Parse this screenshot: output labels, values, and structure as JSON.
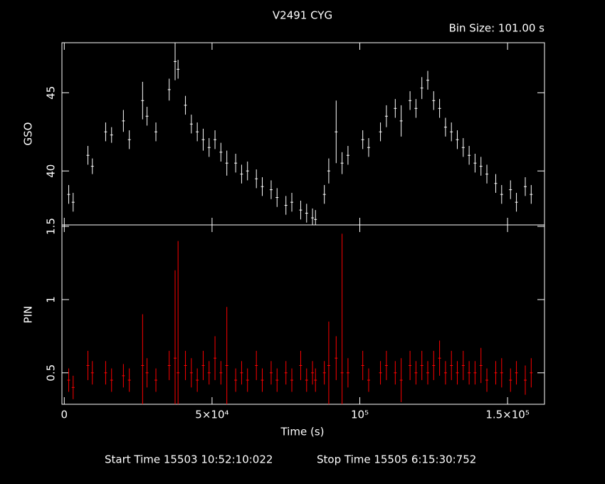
{
  "chart_data": [
    {
      "type": "errorbar",
      "title": "V2491 CYG",
      "subtitle": "Bin Size: 101.00 s",
      "ylabel": "GSO",
      "color": "#ffffff",
      "x": [
        1500,
        3000,
        8000,
        9500,
        14000,
        16000,
        20000,
        22000,
        26500,
        28000,
        31000,
        35500,
        37500,
        38500,
        41000,
        43000,
        45000,
        47000,
        49000,
        51000,
        53000,
        55000,
        58000,
        60000,
        62000,
        65000,
        67000,
        70000,
        72000,
        75000,
        77000,
        80000,
        82000,
        84000,
        85000,
        88000,
        89500,
        92000,
        94000,
        96000,
        101000,
        103000,
        107000,
        109000,
        112000,
        114000,
        117000,
        119000,
        121000,
        123000,
        125000,
        127000,
        129000,
        131000,
        133000,
        135000,
        137000,
        139000,
        141000,
        143000,
        146000,
        148000,
        151000,
        153000,
        156000,
        158000
      ],
      "values": [
        38.5,
        38.0,
        41.0,
        40.3,
        42.5,
        42.3,
        43.2,
        42.0,
        44.5,
        43.5,
        42.5,
        45.2,
        47.0,
        46.5,
        44.2,
        43.0,
        42.5,
        42.0,
        41.5,
        42.0,
        41.2,
        40.5,
        40.5,
        39.8,
        40.0,
        39.5,
        39.0,
        38.8,
        38.3,
        37.8,
        38.0,
        37.5,
        37.3,
        37.0,
        36.9,
        38.5,
        40.0,
        42.5,
        40.5,
        41.0,
        42.0,
        41.5,
        42.5,
        43.5,
        44.0,
        43.2,
        44.5,
        44.0,
        45.3,
        45.8,
        44.5,
        44.0,
        42.8,
        42.5,
        42.0,
        41.5,
        41.0,
        40.5,
        40.3,
        39.8,
        39.2,
        38.5,
        38.8,
        38.0,
        39.0,
        38.5
      ],
      "errors": [
        0.6,
        0.6,
        0.6,
        0.5,
        0.6,
        0.5,
        0.7,
        0.6,
        1.2,
        0.6,
        0.6,
        0.7,
        1.2,
        0.6,
        0.6,
        0.6,
        0.6,
        0.7,
        0.6,
        0.6,
        0.6,
        0.8,
        0.6,
        0.6,
        0.6,
        0.6,
        0.6,
        0.6,
        0.6,
        0.6,
        0.6,
        0.6,
        0.6,
        0.6,
        0.6,
        0.6,
        0.8,
        2.0,
        0.7,
        0.6,
        0.6,
        0.6,
        0.6,
        0.7,
        0.6,
        1.0,
        0.6,
        0.6,
        0.7,
        0.6,
        0.6,
        0.6,
        0.6,
        0.6,
        0.6,
        0.6,
        0.6,
        0.6,
        0.6,
        0.6,
        0.6,
        0.6,
        0.6,
        0.6,
        0.6,
        0.6
      ],
      "xlim": [
        -800,
        162500
      ],
      "ylim": [
        36.55,
        48.2
      ],
      "yticks": [
        40,
        45
      ]
    },
    {
      "type": "errorbar",
      "ylabel": "PIN",
      "xlabel": "Time (s)",
      "color": "#ff0000",
      "footer_start": "Start Time 15503 10:52:10:022",
      "footer_stop": "Stop Time 15505  6:15:30:752",
      "x": [
        1500,
        3000,
        8000,
        9500,
        14000,
        16000,
        20000,
        22000,
        26500,
        28000,
        31000,
        35500,
        37500,
        38500,
        41000,
        43000,
        45000,
        47000,
        49000,
        51000,
        53000,
        55000,
        58000,
        60000,
        62000,
        65000,
        67000,
        70000,
        72000,
        75000,
        77000,
        80000,
        82000,
        84000,
        85000,
        88000,
        89500,
        92000,
        94000,
        96000,
        101000,
        103000,
        107000,
        109000,
        112000,
        114000,
        117000,
        119000,
        121000,
        123000,
        125000,
        127000,
        129000,
        131000,
        133000,
        135000,
        137000,
        139000,
        141000,
        143000,
        146000,
        148000,
        151000,
        153000,
        156000,
        158000
      ],
      "values": [
        0.45,
        0.4,
        0.55,
        0.5,
        0.5,
        0.45,
        0.48,
        0.45,
        0.55,
        0.5,
        0.45,
        0.55,
        0.6,
        0.5,
        0.55,
        0.5,
        0.45,
        0.55,
        0.5,
        0.6,
        0.5,
        0.55,
        0.45,
        0.5,
        0.45,
        0.55,
        0.45,
        0.5,
        0.45,
        0.5,
        0.45,
        0.55,
        0.45,
        0.5,
        0.45,
        0.5,
        0.55,
        0.6,
        0.5,
        0.5,
        0.55,
        0.45,
        0.5,
        0.55,
        0.5,
        0.45,
        0.55,
        0.5,
        0.55,
        0.5,
        0.55,
        0.6,
        0.5,
        0.55,
        0.5,
        0.55,
        0.5,
        0.5,
        0.55,
        0.45,
        0.5,
        0.5,
        0.45,
        0.5,
        0.45,
        0.5
      ],
      "errors": [
        0.08,
        0.08,
        0.1,
        0.08,
        0.08,
        0.08,
        0.08,
        0.08,
        0.35,
        0.1,
        0.08,
        0.1,
        0.6,
        0.9,
        0.1,
        0.1,
        0.08,
        0.1,
        0.08,
        0.15,
        0.08,
        0.4,
        0.08,
        0.08,
        0.08,
        0.1,
        0.08,
        0.08,
        0.08,
        0.08,
        0.08,
        0.1,
        0.08,
        0.08,
        0.08,
        0.08,
        0.3,
        0.15,
        0.95,
        0.1,
        0.1,
        0.08,
        0.08,
        0.1,
        0.08,
        0.15,
        0.1,
        0.08,
        0.1,
        0.08,
        0.1,
        0.12,
        0.08,
        0.1,
        0.08,
        0.1,
        0.08,
        0.08,
        0.12,
        0.08,
        0.08,
        0.1,
        0.08,
        0.08,
        0.1,
        0.1
      ],
      "xlim": [
        -800,
        162500
      ],
      "ylim": [
        0.285,
        1.51
      ],
      "yticks": [
        0.5,
        1,
        1.5
      ],
      "xticks": [
        0,
        {
          "value": 50000,
          "label": "5×10⁴"
        },
        {
          "value": 100000,
          "label": "10⁵"
        },
        {
          "value": 150000,
          "label": "1.5×10⁵"
        }
      ]
    }
  ]
}
